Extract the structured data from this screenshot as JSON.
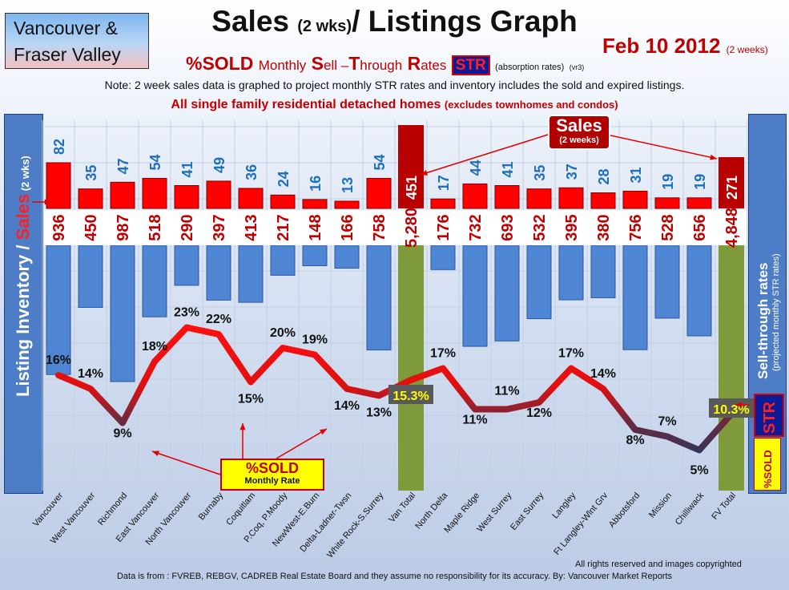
{
  "header": {
    "region_line1": "Vancouver &",
    "region_line2": "Fraser Valley",
    "title_main": "Sales ",
    "title_small": "(2 wks)",
    "title_end": "/ Listings Graph",
    "date": "Feb 10 2012",
    "date_note": "(2 weeks)",
    "sub_sold": "%SOLD",
    "sub_monthly": "Monthly",
    "sub_S": "S",
    "sub_ell": "ell –",
    "sub_T": "T",
    "sub_hrough": "hrough",
    "sub_R": "R",
    "sub_ates": "ates",
    "sub_str": "STR",
    "sub_absorption": "(absorption rates)",
    "sub_vr": "(vr3)",
    "note": "Note: 2 week sales data is graphed to project monthly STR rates and inventory includes the sold and expired listings.",
    "homes_main": "All single family residential detached homes",
    "homes_small": "(excludes townhomes and condos)"
  },
  "side": {
    "left_a": "Listing Inventory / ",
    "left_b": "Sales",
    "left_c": " (2 wks)",
    "right_a": "Sell-through rates",
    "right_b": "(projected monthly STR rates)",
    "badge_str": "STR",
    "badge_sold": "%SOLD"
  },
  "callouts": {
    "sales_a": "Sales",
    "sales_b": "(2 weeks)",
    "sold_a": "%SOLD",
    "sold_b": "Monthly Rate"
  },
  "footer": {
    "rights": "All rights reserved and  images copyrighted",
    "source": "Data is from : FVREB, REBGV, CADREB Real Estate Board and they assume no responsibility for its accuracy. By: Vancouver Market Reports"
  },
  "colors": {
    "sales_bar": "#ff0000",
    "inventory_bar": "#4f86d4",
    "total_bar": "#7f9a3a",
    "line_high": "#ff0000",
    "line_low": "#1f3864"
  },
  "chart_data": {
    "type": "bar",
    "categories": [
      "Vancouver",
      "West Vancouver",
      "Richmond",
      "East Vancouver",
      "North Vancouver",
      "Burnaby",
      "Coquitlam",
      "P.Coq, P.Moody",
      "NewWest-E.Burn",
      "Delta-Ladner-Twsn",
      "White Rock-S.Surrey",
      "Van Total",
      "North Delta",
      "Maple Ridge",
      "West Surrey",
      "East Surrey",
      "Langley",
      "Ft Langley-Wlnt Grv",
      "Abbotsford",
      "Mission",
      "Chilliwack",
      "FV Total"
    ],
    "sales_labels": [
      "82",
      "35",
      "47",
      "54",
      "41",
      "49",
      "36",
      "24",
      "16",
      "13",
      "54",
      "451",
      "17",
      "44",
      "41",
      "35",
      "37",
      "28",
      "31",
      "19",
      "19",
      "271"
    ],
    "inventory_labels": [
      "936",
      "450",
      "987",
      "518",
      "290",
      "397",
      "413",
      "217",
      "148",
      "166",
      "758",
      "5,280",
      "176",
      "732",
      "693",
      "532",
      "395",
      "380",
      "756",
      "528",
      "656",
      "4,848"
    ],
    "series": [
      {
        "name": "Sales",
        "values": [
          82,
          35,
          47,
          54,
          41,
          49,
          36,
          24,
          16,
          13,
          54,
          451,
          17,
          44,
          41,
          35,
          37,
          28,
          31,
          19,
          19,
          271
        ]
      },
      {
        "name": "Listing Inventory",
        "values": [
          936,
          450,
          987,
          518,
          290,
          397,
          413,
          217,
          148,
          166,
          758,
          5280,
          176,
          732,
          693,
          532,
          395,
          380,
          756,
          528,
          656,
          4848
        ]
      }
    ],
    "str_values": [
      16,
      14,
      9,
      18,
      23,
      22,
      15,
      20,
      19,
      14,
      13,
      15.3,
      17,
      11,
      11,
      12,
      17,
      14,
      8,
      7,
      5,
      10.3
    ],
    "str_labels": [
      "16%",
      "14%",
      "9%",
      "18%",
      "23%",
      "22%",
      "15%",
      "20%",
      "19%",
      "14%",
      "13%",
      "15.3%",
      "17%",
      "11%",
      "11%",
      "12%",
      "17%",
      "14%",
      "8%",
      "7%",
      "5%",
      "10.3%"
    ],
    "total_indices": [
      11,
      21
    ]
  }
}
